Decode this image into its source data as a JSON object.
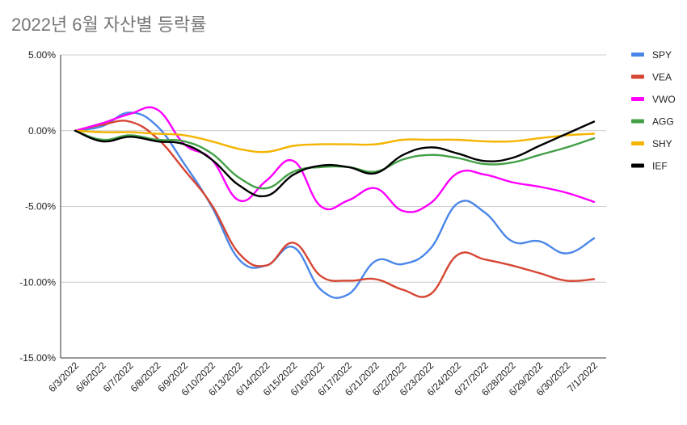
{
  "chart_data": {
    "type": "line",
    "title": "2022년 6월 자산별 등락률",
    "xlabel": "",
    "ylabel": "",
    "categories": [
      "6/3/2022",
      "6/6/2022",
      "6/7/2022",
      "6/8/2022",
      "6/9/2022",
      "6/10/2022",
      "6/13/2022",
      "6/14/2022",
      "6/15/2022",
      "6/16/2022",
      "6/17/2022",
      "6/21/2022",
      "6/22/2022",
      "6/23/2022",
      "6/24/2022",
      "6/27/2022",
      "6/28/2022",
      "6/29/2022",
      "6/30/2022",
      "7/1/2022"
    ],
    "ylim": [
      -15,
      5
    ],
    "yticks": [
      5,
      0,
      -5,
      -10,
      -15
    ],
    "ytick_labels": [
      "5.00%",
      "0.00%",
      "-5.00%",
      "-10.00%",
      "-15.00%"
    ],
    "grid": true,
    "legend_position": "right",
    "series": [
      {
        "name": "SPY",
        "color": "#4a86e8",
        "values": [
          0,
          0.3,
          1.2,
          0.3,
          -2.2,
          -5.0,
          -8.5,
          -8.9,
          -7.7,
          -10.5,
          -10.8,
          -8.6,
          -8.8,
          -7.8,
          -4.8,
          -5.4,
          -7.3,
          -7.3,
          -8.1,
          -7.1
        ]
      },
      {
        "name": "VEA",
        "color": "#d64532",
        "values": [
          0,
          0.4,
          0.6,
          -0.5,
          -2.6,
          -4.9,
          -8.1,
          -8.9,
          -7.4,
          -9.6,
          -9.9,
          -9.8,
          -10.5,
          -10.8,
          -8.2,
          -8.5,
          -8.9,
          -9.4,
          -9.9,
          -9.8
        ]
      },
      {
        "name": "VWO",
        "color": "#ff00ff",
        "values": [
          0,
          0.5,
          1.1,
          1.4,
          -0.9,
          -1.9,
          -4.6,
          -3.3,
          -2.0,
          -5.0,
          -4.6,
          -3.8,
          -5.3,
          -4.8,
          -2.8,
          -2.9,
          -3.4,
          -3.7,
          -4.1,
          -4.7
        ]
      },
      {
        "name": "AGG",
        "color": "#43a047",
        "values": [
          0,
          -0.6,
          -0.3,
          -0.6,
          -0.7,
          -1.5,
          -3.1,
          -3.8,
          -2.7,
          -2.4,
          -2.4,
          -2.7,
          -1.9,
          -1.6,
          -1.8,
          -2.2,
          -2.1,
          -1.6,
          -1.1,
          -0.5
        ]
      },
      {
        "name": "SHY",
        "color": "#f4b400",
        "values": [
          0,
          -0.1,
          -0.1,
          -0.2,
          -0.3,
          -0.7,
          -1.2,
          -1.4,
          -1.0,
          -0.9,
          -0.9,
          -0.9,
          -0.6,
          -0.6,
          -0.6,
          -0.7,
          -0.7,
          -0.5,
          -0.3,
          -0.2
        ]
      },
      {
        "name": "IEF",
        "color": "#000000",
        "values": [
          0,
          -0.7,
          -0.4,
          -0.7,
          -0.9,
          -1.9,
          -3.6,
          -4.3,
          -2.9,
          -2.3,
          -2.4,
          -2.8,
          -1.6,
          -1.1,
          -1.5,
          -2.0,
          -1.8,
          -1.0,
          -0.2,
          0.6
        ]
      }
    ]
  }
}
